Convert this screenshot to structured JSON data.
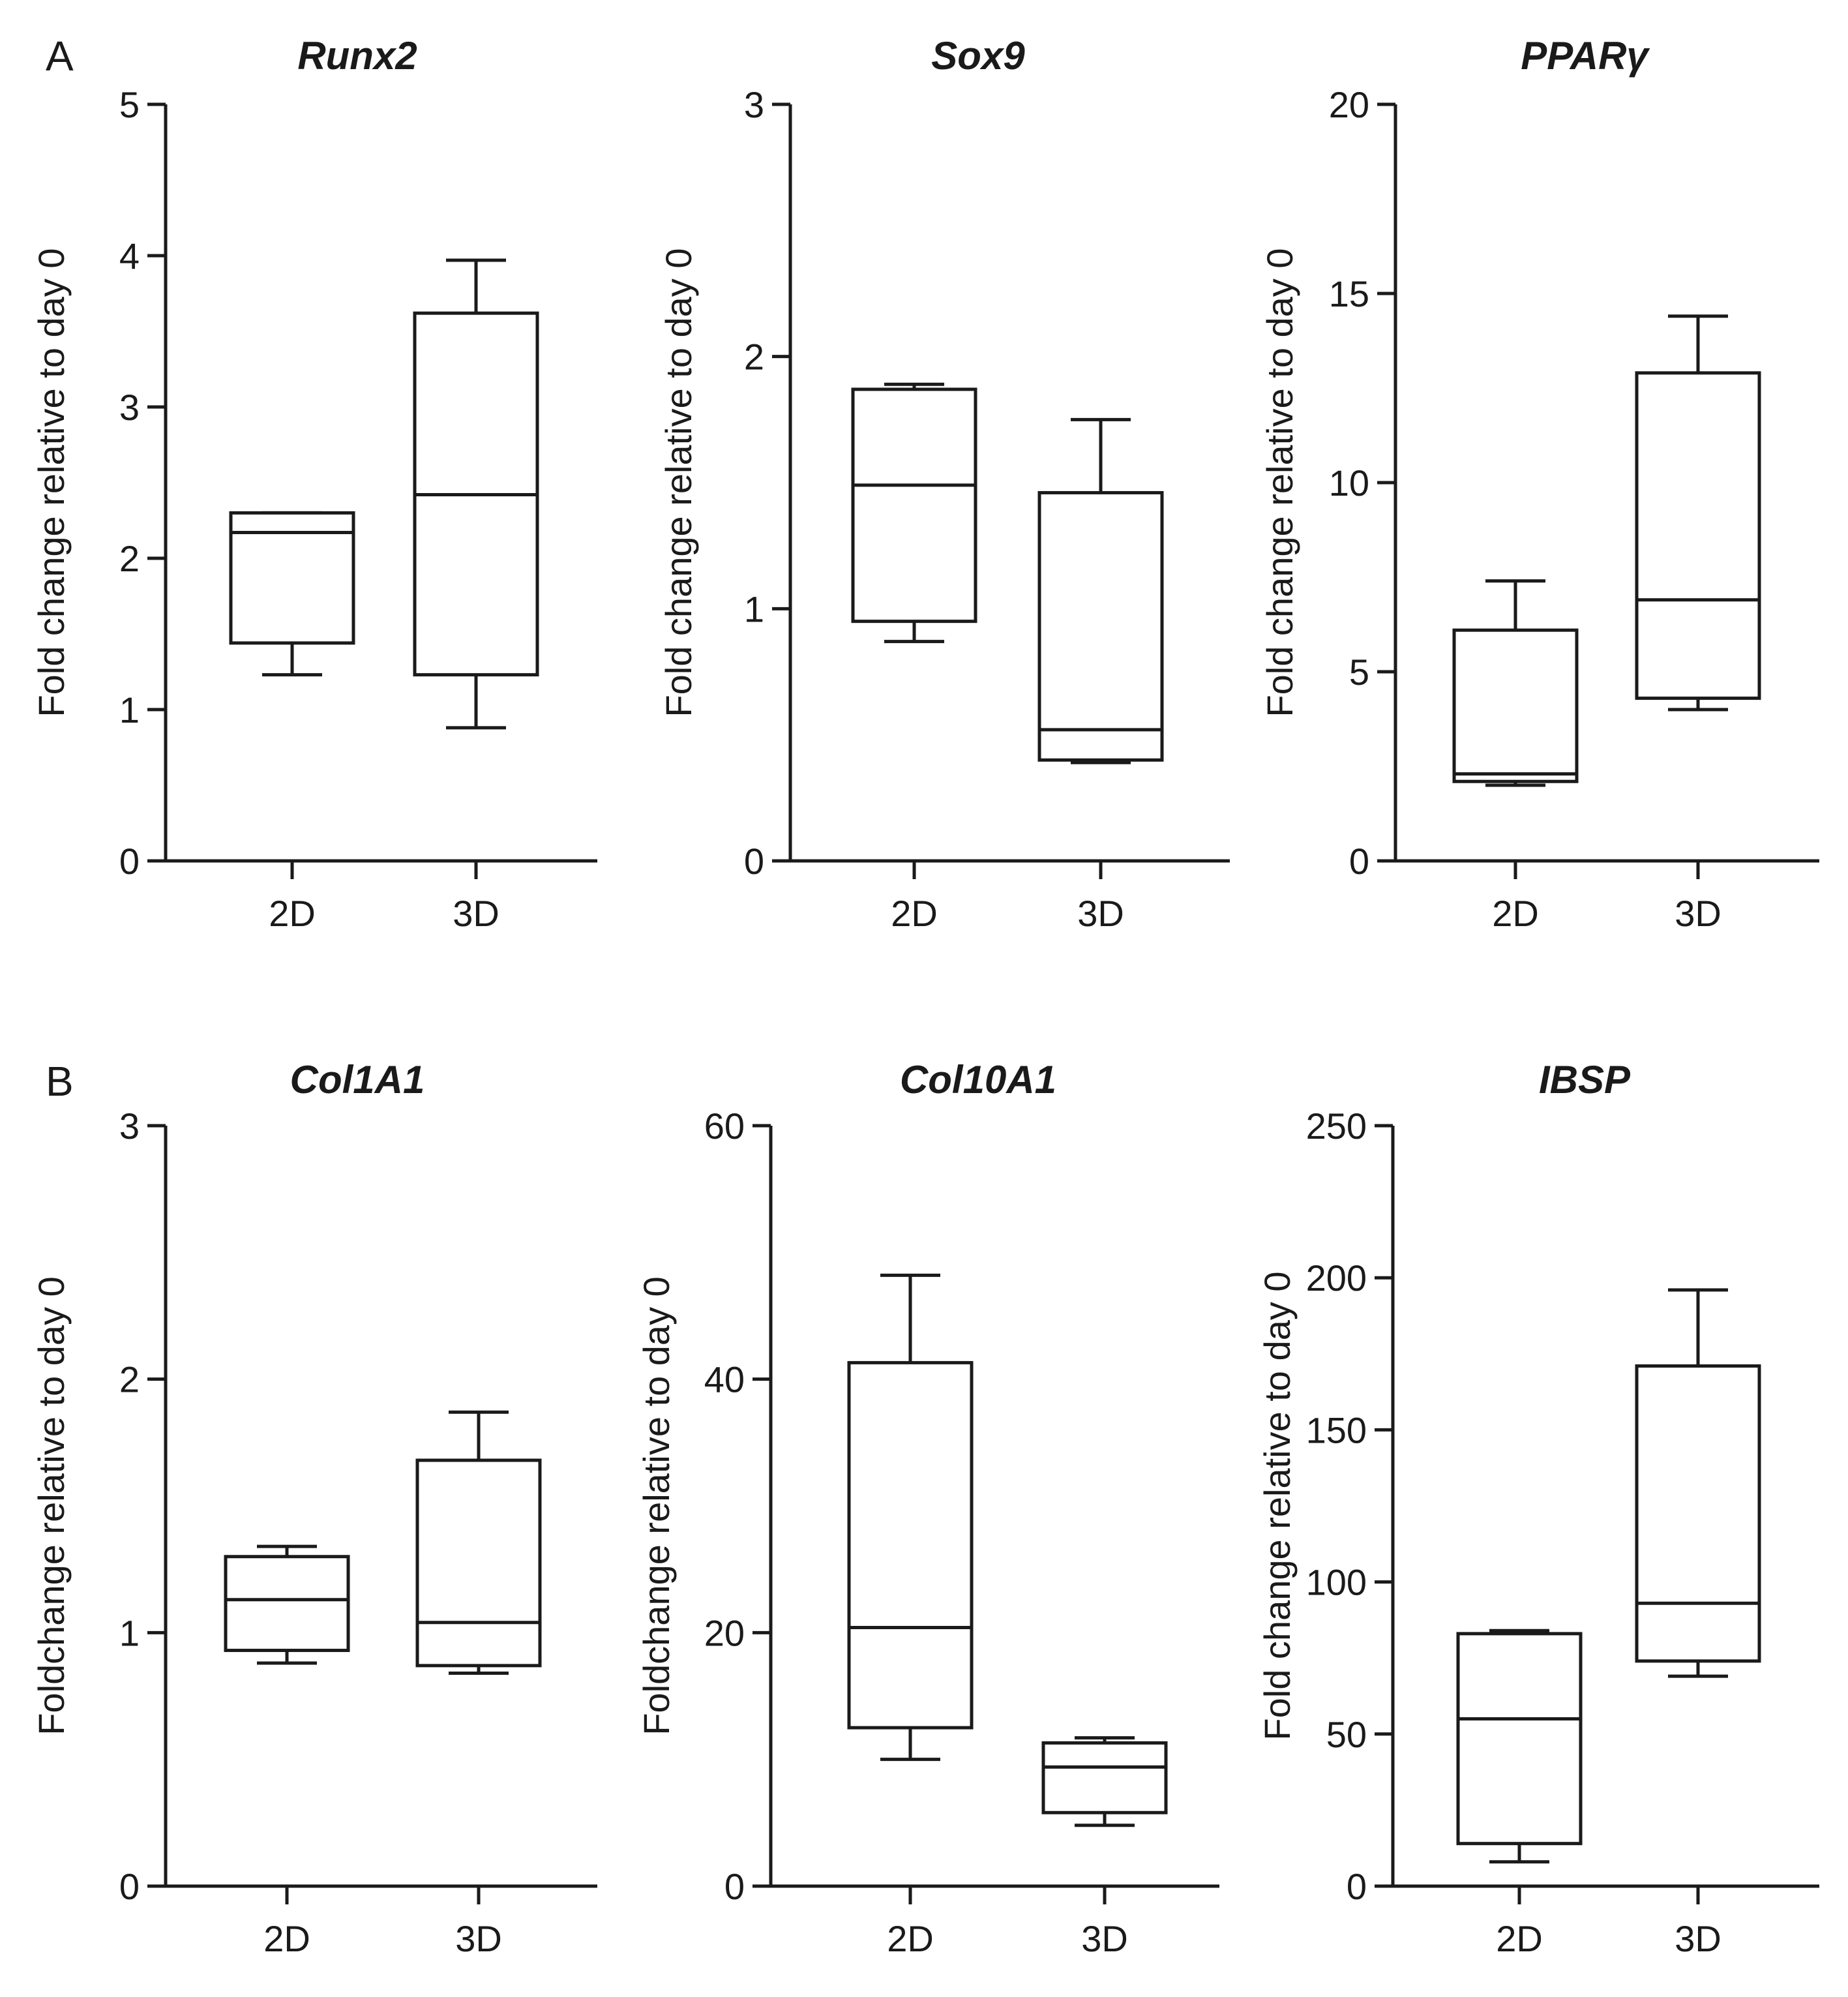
{
  "panel_letters": [
    "A",
    "B"
  ],
  "chart_data": [
    {
      "type": "box",
      "panel": "A",
      "title": "Runx2",
      "ylabel": "Fold change relative to day 0",
      "ylim": [
        0,
        5
      ],
      "yticks": [
        "0",
        "1",
        "2",
        "3",
        "4",
        "5"
      ],
      "categories": [
        "2D",
        "3D"
      ],
      "boxes": [
        {
          "min": 1.23,
          "q1": 1.44,
          "median": 2.17,
          "q3": 2.3,
          "max": 2.3
        },
        {
          "min": 0.88,
          "q1": 1.23,
          "median": 2.42,
          "q3": 3.62,
          "max": 3.97
        }
      ]
    },
    {
      "type": "box",
      "panel": "A",
      "title": "Sox9",
      "ylabel": "Fold change relative to day 0",
      "ylim": [
        0,
        3
      ],
      "yticks": [
        "0",
        "1",
        "2",
        "3"
      ],
      "categories": [
        "2D",
        "3D"
      ],
      "boxes": [
        {
          "min": 0.87,
          "q1": 0.95,
          "median": 1.49,
          "q3": 1.87,
          "max": 1.89
        },
        {
          "min": 0.39,
          "q1": 0.4,
          "median": 0.52,
          "q3": 1.46,
          "max": 1.75
        }
      ]
    },
    {
      "type": "box",
      "panel": "A",
      "title": "PPARγ",
      "ylabel": "Fold change relative to day 0",
      "ylim": [
        0,
        20
      ],
      "yticks": [
        "0",
        "5",
        "10",
        "15",
        "20"
      ],
      "categories": [
        "2D",
        "3D"
      ],
      "boxes": [
        {
          "min": 2.0,
          "q1": 2.1,
          "median": 2.3,
          "q3": 6.1,
          "max": 7.4
        },
        {
          "min": 4.0,
          "q1": 4.3,
          "median": 6.9,
          "q3": 12.9,
          "max": 14.4
        }
      ]
    },
    {
      "type": "box",
      "panel": "B",
      "title": "Col1A1",
      "ylabel": "Foldchange relative to day 0",
      "ylim": [
        0,
        3
      ],
      "yticks": [
        "0",
        "1",
        "2",
        "3"
      ],
      "categories": [
        "2D",
        "3D"
      ],
      "boxes": [
        {
          "min": 0.88,
          "q1": 0.93,
          "median": 1.13,
          "q3": 1.3,
          "max": 1.34
        },
        {
          "min": 0.84,
          "q1": 0.87,
          "median": 1.04,
          "q3": 1.68,
          "max": 1.87
        }
      ]
    },
    {
      "type": "box",
      "panel": "B",
      "title": "Col10A1",
      "ylabel": "Foldchange relative to day 0",
      "ylim": [
        0,
        60
      ],
      "yticks": [
        "0",
        "20",
        "40",
        "60"
      ],
      "categories": [
        "2D",
        "3D"
      ],
      "boxes": [
        {
          "min": 10.0,
          "q1": 12.5,
          "median": 20.4,
          "q3": 41.3,
          "max": 48.2
        },
        {
          "min": 4.8,
          "q1": 5.8,
          "median": 9.4,
          "q3": 11.3,
          "max": 11.7
        }
      ]
    },
    {
      "type": "box",
      "panel": "B",
      "title": "IBSP",
      "ylabel": "Fold change relative to day 0",
      "ylim": [
        0,
        250
      ],
      "yticks": [
        "0",
        "50",
        "100",
        "150",
        "200",
        "250"
      ],
      "categories": [
        "2D",
        "3D"
      ],
      "boxes": [
        {
          "min": 8,
          "q1": 14,
          "median": 55,
          "q3": 83,
          "max": 84
        },
        {
          "min": 69,
          "q1": 74,
          "median": 93,
          "q3": 171,
          "max": 196
        }
      ]
    }
  ]
}
